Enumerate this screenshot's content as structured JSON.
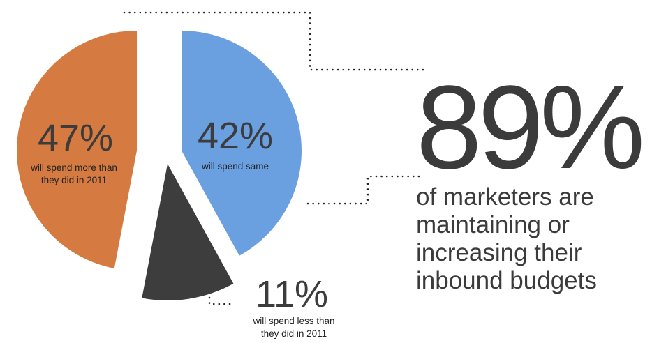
{
  "chart_data": {
    "type": "pie",
    "title": "",
    "slices": [
      {
        "key": "same",
        "value": 42,
        "label": "42%",
        "desc_lines": [
          "will spend same"
        ],
        "color": "#6a9fe0"
      },
      {
        "key": "less",
        "value": 11,
        "label": "11%",
        "desc_lines": [
          "will spend less than",
          "they did in 2011"
        ],
        "color": "#3d3d3d"
      },
      {
        "key": "more",
        "value": 47,
        "label": "47%",
        "desc_lines": [
          "will spend more than",
          "they did in 2011"
        ],
        "color": "#d57a40"
      }
    ]
  },
  "callout": {
    "value": "89%",
    "lines": [
      "of marketers are",
      "maintaining or",
      "increasing their",
      "inbound budgets"
    ]
  }
}
